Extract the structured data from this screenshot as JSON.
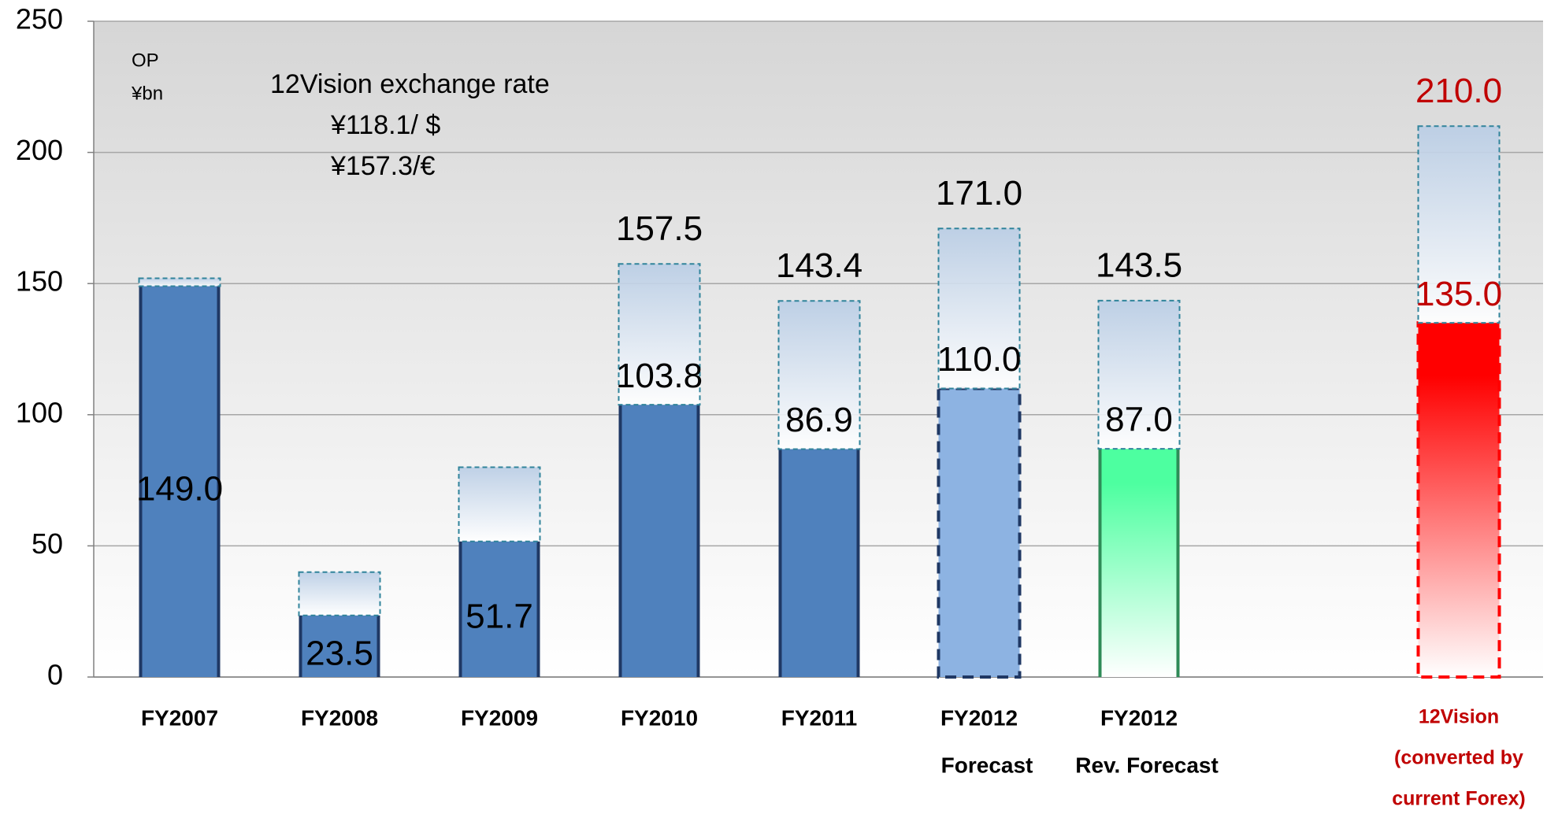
{
  "chart_data": {
    "type": "bar",
    "categories": [
      [
        "FY2007"
      ],
      [
        "FY2008"
      ],
      [
        "FY2009"
      ],
      [
        "FY2010"
      ],
      [
        "FY2011"
      ],
      [
        "FY2012",
        "Forecast"
      ],
      [
        "FY2012",
        "Rev. Forecast"
      ],
      null,
      [
        "12Vision",
        "(converted by",
        "current Forex)"
      ]
    ],
    "series": [
      {
        "values": [
          149.0,
          23.5,
          51.7,
          103.8,
          86.9,
          110.0,
          87.0,
          null,
          135.0
        ],
        "value_labels": [
          "149.0",
          "23.5",
          "51.7",
          "103.8",
          "86.9",
          "110.0",
          "87.0",
          null,
          "135.0"
        ],
        "colors": [
          "#4f81bd",
          "#4f81bd",
          "#4f81bd",
          "#4f81bd",
          "#4f81bd",
          "#8db3e2",
          "#4dffa0",
          null,
          "#ff0000"
        ],
        "edge_colors": [
          "#1f3864",
          "#1f3864",
          "#1f3864",
          "#1f3864",
          "#1f3864",
          "#1f3864",
          "#2e8b57",
          null,
          "#ff0000"
        ],
        "dashed": [
          false,
          false,
          false,
          false,
          false,
          true,
          false,
          null,
          true
        ],
        "faded": [
          false,
          false,
          false,
          false,
          false,
          false,
          true,
          null,
          true
        ]
      },
      {
        "values": [
          152,
          40,
          80,
          157.5,
          143.4,
          171.0,
          143.5,
          null,
          210.0
        ],
        "value_labels": [
          null,
          null,
          null,
          "157.5",
          "143.4",
          "171.0",
          "143.5",
          null,
          "210.0"
        ],
        "color": "#31849b"
      }
    ],
    "label_colors": [
      "#000000",
      "#000000",
      "#000000",
      "#000000",
      "#000000",
      "#000000",
      "#000000",
      null,
      "#c00000"
    ],
    "annotations": [
      "OP",
      "¥bn",
      "12Vision exchange rate",
      "¥118.1/ $",
      "¥157.3/€"
    ],
    "ylim": [
      0,
      250
    ],
    "yticks": [
      0,
      50,
      100,
      150,
      200,
      250
    ],
    "grid": true
  }
}
